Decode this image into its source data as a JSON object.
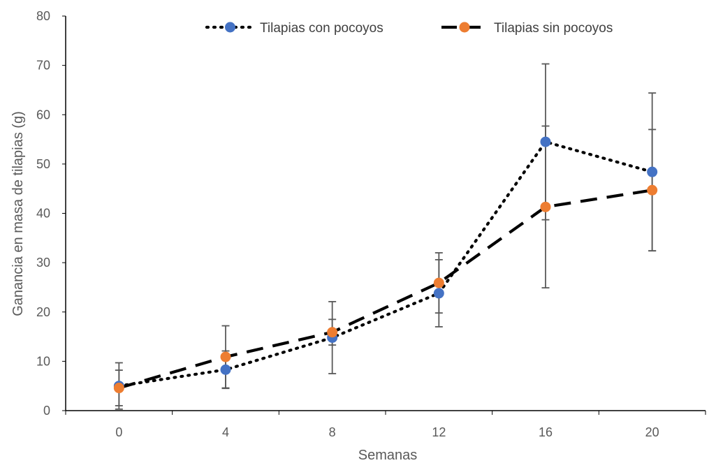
{
  "chart_data": {
    "type": "line",
    "xlabel": "Semanas",
    "ylabel": "Ganancia en masa de tilapias (g)",
    "categories": [
      "0",
      "4",
      "8",
      "12",
      "16",
      "20"
    ],
    "ylim": [
      0,
      80
    ],
    "yticks": [
      "0",
      "10",
      "20",
      "30",
      "40",
      "50",
      "60",
      "70",
      "80"
    ],
    "grid": false,
    "legend_position": "top",
    "series": [
      {
        "name": "Tilapias con pocoyos",
        "color": "#4472c4",
        "line_style": "dotted",
        "values": [
          5.0,
          8.3,
          14.8,
          23.8,
          54.5,
          48.4
        ],
        "error": [
          4.7,
          3.8,
          7.3,
          6.8,
          15.8,
          16.0
        ]
      },
      {
        "name": "Tilapias sin pocoyos",
        "color": "#ed7d31",
        "line_style": "dashed",
        "values": [
          4.6,
          10.9,
          15.9,
          25.9,
          41.3,
          44.7
        ],
        "error": [
          3.6,
          6.3,
          2.6,
          6.1,
          16.4,
          12.3
        ]
      }
    ]
  }
}
